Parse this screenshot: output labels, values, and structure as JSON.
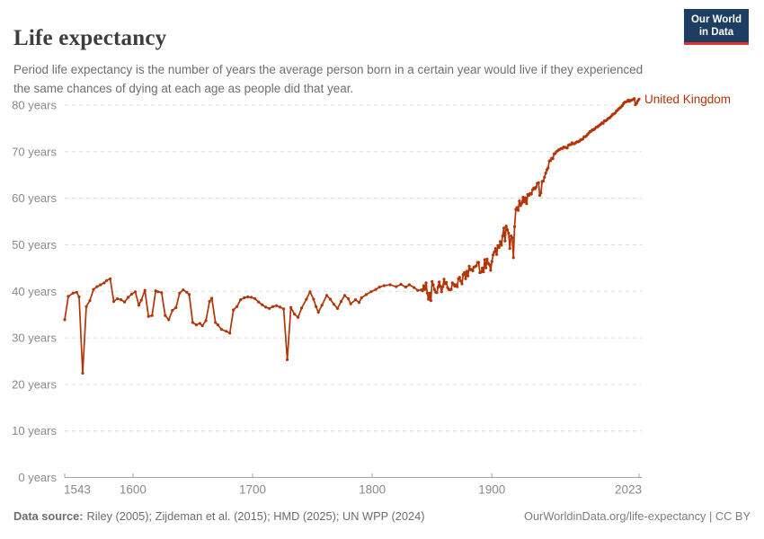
{
  "header": {
    "title": "Life expectancy",
    "subtitle": "Period life expectancy is the number of years the average person born in a certain year would live if they experienced the same chances of dying at each age as people did that year."
  },
  "logo": {
    "line1": "Our World",
    "line2": "in Data",
    "bg_color": "#1d3d63",
    "accent_color": "#e0332c"
  },
  "footer": {
    "datasource_label": "Data source:",
    "datasource_text": "Riley (2005); Zijdeman et al. (2015); HMD (2025); UN WPP (2024)",
    "attribution_text": "OurWorldinData.org/life-expectancy | CC BY"
  },
  "chart_data": {
    "type": "line",
    "title": "Life expectancy",
    "entity": "United Kingdom",
    "xlabel": "",
    "ylabel": "",
    "xlim": [
      1543,
      2023
    ],
    "ylim": [
      0,
      80
    ],
    "x_ticks": [
      1543,
      1600,
      1700,
      1800,
      1900,
      2023
    ],
    "y_ticks": [
      0,
      10,
      20,
      30,
      40,
      50,
      60,
      70,
      80
    ],
    "y_tick_suffix": " years",
    "grid": true,
    "legend_position": "end-of-line",
    "colors": {
      "line": "#b13507",
      "grid": "#dcdcdc",
      "axis": "#a5a5a5",
      "tick_label": "#8a8a8a"
    },
    "series": [
      {
        "name": "United Kingdom",
        "color": "#b13507",
        "points": [
          [
            1543,
            33.9
          ],
          [
            1546,
            38.9
          ],
          [
            1550,
            39.6
          ],
          [
            1553,
            39.8
          ],
          [
            1555,
            38.8
          ],
          [
            1558,
            22.4
          ],
          [
            1561,
            36.7
          ],
          [
            1564,
            38.0
          ],
          [
            1567,
            40.4
          ],
          [
            1570,
            41.0
          ],
          [
            1573,
            41.4
          ],
          [
            1576,
            41.8
          ],
          [
            1578,
            42.3
          ],
          [
            1581,
            42.7
          ],
          [
            1584,
            37.8
          ],
          [
            1587,
            38.4
          ],
          [
            1590,
            38.2
          ],
          [
            1593,
            37.7
          ],
          [
            1596,
            38.7
          ],
          [
            1599,
            39.4
          ],
          [
            1602,
            39.9
          ],
          [
            1605,
            37.0
          ],
          [
            1607,
            38.1
          ],
          [
            1610,
            40.2
          ],
          [
            1613,
            34.6
          ],
          [
            1616,
            34.8
          ],
          [
            1619,
            40.1
          ],
          [
            1621,
            39.9
          ],
          [
            1624,
            39.7
          ],
          [
            1627,
            34.8
          ],
          [
            1630,
            33.9
          ],
          [
            1633,
            35.9
          ],
          [
            1636,
            36.5
          ],
          [
            1639,
            39.6
          ],
          [
            1642,
            40.3
          ],
          [
            1645,
            39.8
          ],
          [
            1647,
            39.3
          ],
          [
            1650,
            33.3
          ],
          [
            1653,
            32.8
          ],
          [
            1656,
            33.1
          ],
          [
            1658,
            32.6
          ],
          [
            1661,
            33.7
          ],
          [
            1664,
            37.8
          ],
          [
            1666,
            38.5
          ],
          [
            1669,
            33.3
          ],
          [
            1671,
            32.8
          ],
          [
            1674,
            31.8
          ],
          [
            1678,
            31.4
          ],
          [
            1681,
            31.0
          ],
          [
            1684,
            36.0
          ],
          [
            1687,
            36.7
          ],
          [
            1690,
            38.2
          ],
          [
            1693,
            38.6
          ],
          [
            1696,
            38.8
          ],
          [
            1699,
            38.7
          ],
          [
            1702,
            38.4
          ],
          [
            1705,
            37.7
          ],
          [
            1708,
            37.1
          ],
          [
            1711,
            36.6
          ],
          [
            1714,
            36.3
          ],
          [
            1717,
            36.7
          ],
          [
            1720,
            36.9
          ],
          [
            1723,
            36.6
          ],
          [
            1726,
            36.2
          ],
          [
            1729,
            25.3
          ],
          [
            1732,
            36.5
          ],
          [
            1735,
            35.1
          ],
          [
            1738,
            34.4
          ],
          [
            1741,
            36.4
          ],
          [
            1745,
            38.3
          ],
          [
            1748,
            39.9
          ],
          [
            1751,
            38.3
          ],
          [
            1753,
            36.7
          ],
          [
            1755,
            35.5
          ],
          [
            1758,
            37.0
          ],
          [
            1762,
            39.1
          ],
          [
            1765,
            38.3
          ],
          [
            1768,
            37.2
          ],
          [
            1771,
            36.3
          ],
          [
            1774,
            37.8
          ],
          [
            1777,
            39.1
          ],
          [
            1780,
            38.4
          ],
          [
            1782,
            37.3
          ],
          [
            1786,
            38.2
          ],
          [
            1789,
            37.6
          ],
          [
            1791,
            38.6
          ],
          [
            1795,
            39.3
          ],
          [
            1799,
            39.9
          ],
          [
            1803,
            40.4
          ],
          [
            1806,
            40.9
          ],
          [
            1810,
            41.2
          ],
          [
            1815,
            41.4
          ],
          [
            1820,
            41.0
          ],
          [
            1824,
            41.5
          ],
          [
            1828,
            40.9
          ],
          [
            1831,
            41.4
          ],
          [
            1835,
            40.8
          ],
          [
            1838,
            40.2
          ],
          [
            1841,
            40.3
          ],
          [
            1842,
            40.1
          ],
          [
            1843,
            41.2
          ],
          [
            1844,
            40.4
          ],
          [
            1845,
            41.8
          ],
          [
            1846,
            39.6
          ],
          [
            1847,
            38.3
          ],
          [
            1848,
            39.6
          ],
          [
            1849,
            38.0
          ],
          [
            1850,
            42.1
          ],
          [
            1851,
            41.4
          ],
          [
            1852,
            40.4
          ],
          [
            1853,
            39.8
          ],
          [
            1854,
            39.7
          ],
          [
            1855,
            40.9
          ],
          [
            1856,
            42.0
          ],
          [
            1857,
            41.1
          ],
          [
            1858,
            39.9
          ],
          [
            1859,
            41.0
          ],
          [
            1860,
            42.6
          ],
          [
            1861,
            41.6
          ],
          [
            1862,
            41.9
          ],
          [
            1863,
            40.8
          ],
          [
            1864,
            40.4
          ],
          [
            1865,
            40.3
          ],
          [
            1866,
            40.4
          ],
          [
            1867,
            41.8
          ],
          [
            1868,
            41.5
          ],
          [
            1869,
            41.1
          ],
          [
            1870,
            41.4
          ],
          [
            1871,
            41.0
          ],
          [
            1872,
            42.7
          ],
          [
            1873,
            43.0
          ],
          [
            1874,
            42.2
          ],
          [
            1875,
            41.6
          ],
          [
            1876,
            43.6
          ],
          [
            1877,
            44.0
          ],
          [
            1878,
            42.7
          ],
          [
            1879,
            44.3
          ],
          [
            1880,
            43.3
          ],
          [
            1881,
            45.4
          ],
          [
            1882,
            44.6
          ],
          [
            1883,
            44.7
          ],
          [
            1884,
            44.4
          ],
          [
            1885,
            45.2
          ],
          [
            1886,
            45.3
          ],
          [
            1887,
            45.5
          ],
          [
            1888,
            46.2
          ],
          [
            1889,
            46.2
          ],
          [
            1890,
            44.0
          ],
          [
            1891,
            44.1
          ],
          [
            1892,
            45.0
          ],
          [
            1893,
            44.2
          ],
          [
            1894,
            46.8
          ],
          [
            1895,
            45.0
          ],
          [
            1896,
            46.9
          ],
          [
            1897,
            46.0
          ],
          [
            1898,
            45.7
          ],
          [
            1899,
            44.5
          ],
          [
            1900,
            46.4
          ],
          [
            1901,
            47.8
          ],
          [
            1902,
            48.4
          ],
          [
            1903,
            49.2
          ],
          [
            1904,
            47.9
          ],
          [
            1905,
            49.8
          ],
          [
            1906,
            49.4
          ],
          [
            1907,
            50.7
          ],
          [
            1908,
            49.9
          ],
          [
            1909,
            51.9
          ],
          [
            1910,
            53.6
          ],
          [
            1911,
            50.8
          ],
          [
            1912,
            54.0
          ],
          [
            1913,
            53.2
          ],
          [
            1914,
            52.5
          ],
          [
            1915,
            49.2
          ],
          [
            1916,
            51.9
          ],
          [
            1917,
            51.5
          ],
          [
            1918,
            47.2
          ],
          [
            1919,
            53.9
          ],
          [
            1920,
            57.6
          ],
          [
            1921,
            58.0
          ],
          [
            1922,
            57.4
          ],
          [
            1923,
            59.4
          ],
          [
            1924,
            58.4
          ],
          [
            1925,
            58.9
          ],
          [
            1926,
            60.2
          ],
          [
            1927,
            59.2
          ],
          [
            1928,
            60.1
          ],
          [
            1929,
            58.8
          ],
          [
            1930,
            60.8
          ],
          [
            1931,
            60.6
          ],
          [
            1932,
            61.0
          ],
          [
            1933,
            60.9
          ],
          [
            1934,
            61.8
          ],
          [
            1935,
            62.2
          ],
          [
            1936,
            62.0
          ],
          [
            1937,
            62.4
          ],
          [
            1938,
            63.2
          ],
          [
            1939,
            63.3
          ],
          [
            1940,
            60.6
          ],
          [
            1941,
            61.1
          ],
          [
            1942,
            63.6
          ],
          [
            1943,
            63.7
          ],
          [
            1944,
            64.5
          ],
          [
            1945,
            65.4
          ],
          [
            1946,
            66.1
          ],
          [
            1947,
            66.5
          ],
          [
            1948,
            68.0
          ],
          [
            1949,
            68.1
          ],
          [
            1950,
            68.6
          ],
          [
            1951,
            68.5
          ],
          [
            1952,
            69.5
          ],
          [
            1953,
            69.6
          ],
          [
            1954,
            70.0
          ],
          [
            1955,
            70.2
          ],
          [
            1956,
            70.4
          ],
          [
            1957,
            70.5
          ],
          [
            1958,
            70.7
          ],
          [
            1959,
            70.7
          ],
          [
            1960,
            71.0
          ],
          [
            1961,
            70.9
          ],
          [
            1962,
            70.9
          ],
          [
            1963,
            70.8
          ],
          [
            1964,
            71.4
          ],
          [
            1965,
            71.5
          ],
          [
            1966,
            71.5
          ],
          [
            1967,
            71.9
          ],
          [
            1968,
            71.7
          ],
          [
            1969,
            71.7
          ],
          [
            1970,
            71.9
          ],
          [
            1971,
            72.1
          ],
          [
            1972,
            72.1
          ],
          [
            1973,
            72.2
          ],
          [
            1974,
            72.5
          ],
          [
            1975,
            72.6
          ],
          [
            1976,
            72.7
          ],
          [
            1977,
            73.2
          ],
          [
            1978,
            73.2
          ],
          [
            1979,
            73.4
          ],
          [
            1980,
            73.7
          ],
          [
            1981,
            74.0
          ],
          [
            1982,
            74.3
          ],
          [
            1983,
            74.4
          ],
          [
            1984,
            74.7
          ],
          [
            1985,
            74.7
          ],
          [
            1986,
            74.9
          ],
          [
            1987,
            75.2
          ],
          [
            1988,
            75.3
          ],
          [
            1989,
            75.5
          ],
          [
            1990,
            75.7
          ],
          [
            1991,
            75.9
          ],
          [
            1992,
            76.2
          ],
          [
            1993,
            76.1
          ],
          [
            1994,
            76.6
          ],
          [
            1995,
            76.6
          ],
          [
            1996,
            76.8
          ],
          [
            1997,
            77.1
          ],
          [
            1998,
            77.2
          ],
          [
            1999,
            77.4
          ],
          [
            2000,
            77.7
          ],
          [
            2001,
            78.0
          ],
          [
            2002,
            78.1
          ],
          [
            2003,
            78.3
          ],
          [
            2004,
            78.7
          ],
          [
            2005,
            78.9
          ],
          [
            2006,
            79.2
          ],
          [
            2007,
            79.4
          ],
          [
            2008,
            79.6
          ],
          [
            2009,
            79.9
          ],
          [
            2010,
            80.3
          ],
          [
            2011,
            80.6
          ],
          [
            2012,
            80.7
          ],
          [
            2013,
            80.8
          ],
          [
            2014,
            81.1
          ],
          [
            2015,
            80.8
          ],
          [
            2016,
            81.0
          ],
          [
            2017,
            81.1
          ],
          [
            2018,
            81.2
          ],
          [
            2019,
            81.4
          ],
          [
            2020,
            80.1
          ],
          [
            2021,
            80.4
          ],
          [
            2022,
            80.9
          ],
          [
            2023,
            81.3
          ]
        ]
      }
    ]
  }
}
